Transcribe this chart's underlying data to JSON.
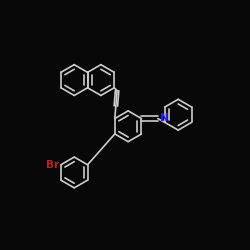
{
  "background_color": "#080808",
  "bond_color": "#cccccc",
  "N_color": "#2222ee",
  "Br_color": "#bb2222",
  "fig_width": 2.5,
  "fig_height": 2.5,
  "dpi": 100,
  "lw": 1.2,
  "fs": 7.5,
  "ring_r": 0.08,
  "inner_scale": 0.7
}
